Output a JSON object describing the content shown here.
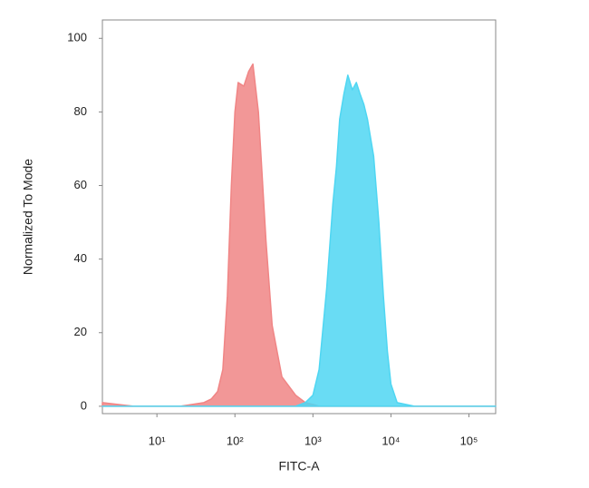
{
  "chart_data": {
    "type": "area",
    "x_label": "FITC-A",
    "y_label": "Normalized To Mode",
    "xscale": "log",
    "xlim": [
      2,
      220000
    ],
    "xticks": [
      {
        "value": 10,
        "label": "10¹"
      },
      {
        "value": 100,
        "label": "10²"
      },
      {
        "value": 1000,
        "label": "10³"
      },
      {
        "value": 10000,
        "label": "10⁴"
      },
      {
        "value": 100000,
        "label": "10⁵"
      }
    ],
    "ylim": [
      -2,
      105
    ],
    "yticks": [
      0,
      20,
      40,
      60,
      80,
      100
    ],
    "x": [
      2,
      5,
      10,
      20,
      40,
      50,
      60,
      70,
      80,
      90,
      100,
      110,
      130,
      150,
      170,
      200,
      250,
      300,
      400,
      600,
      800,
      1000,
      1200,
      1500,
      1800,
      2000,
      2200,
      2500,
      2800,
      3200,
      3600,
      4000,
      4500,
      5000,
      6000,
      7000,
      8000,
      9000,
      10000,
      12000,
      20000,
      100000,
      220000
    ],
    "series": [
      {
        "color": "#f08585",
        "values": [
          1,
          0,
          0,
          0,
          1,
          2,
          4,
          10,
          30,
          60,
          80,
          88,
          87,
          91,
          93,
          80,
          45,
          22,
          8,
          3,
          1,
          0.5,
          0,
          0,
          0,
          0,
          0,
          0,
          0,
          0,
          0,
          0,
          0,
          0,
          0,
          0,
          0,
          0,
          0,
          0,
          0,
          0,
          0
        ]
      },
      {
        "color": "#4fd6f2",
        "values": [
          0,
          0,
          0,
          0,
          0,
          0,
          0,
          0,
          0,
          0,
          0,
          0,
          0,
          0,
          0,
          0,
          0,
          0,
          0,
          0,
          1,
          3,
          10,
          32,
          55,
          65,
          78,
          85,
          90,
          86,
          88,
          85,
          82,
          78,
          68,
          50,
          30,
          15,
          6,
          1,
          0,
          0,
          0
        ]
      }
    ]
  }
}
